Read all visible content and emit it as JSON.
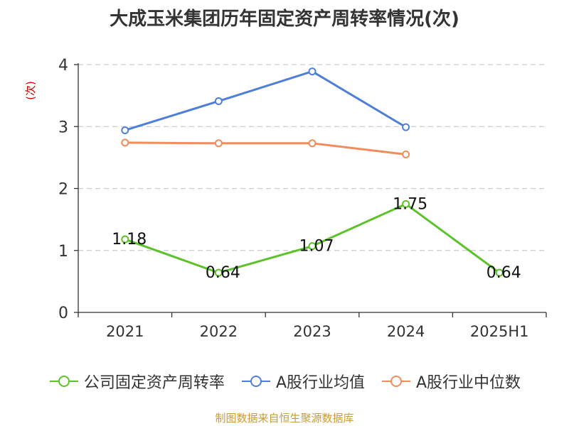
{
  "chart_data": {
    "type": "line",
    "title": "大成玉米集团历年固定资产周转率情况(次)",
    "ylabel": "(次)",
    "xlabel": "",
    "categories": [
      "2021",
      "2022",
      "2023",
      "2024",
      "2025H1"
    ],
    "yticks": [
      "0",
      "1",
      "2",
      "3",
      "4"
    ],
    "ylim": [
      0,
      4
    ],
    "grid": true,
    "legend_position": "bottom",
    "series": [
      {
        "name": "公司固定资产周转率",
        "color": "#5cc22a",
        "values": [
          1.18,
          0.64,
          1.07,
          1.75,
          0.64
        ],
        "labels": [
          "1.18",
          "0.64",
          "1.07",
          "1.75",
          "0.64"
        ]
      },
      {
        "name": "A股行业均值",
        "color": "#4d7fd9",
        "values": [
          2.94,
          3.41,
          3.89,
          2.99,
          null
        ]
      },
      {
        "name": "A股行业中位数",
        "color": "#f28c5a",
        "values": [
          2.74,
          2.73,
          2.73,
          2.55,
          null
        ]
      }
    ]
  },
  "footer": {
    "source": "制图数据来自恒生聚源数据库"
  }
}
